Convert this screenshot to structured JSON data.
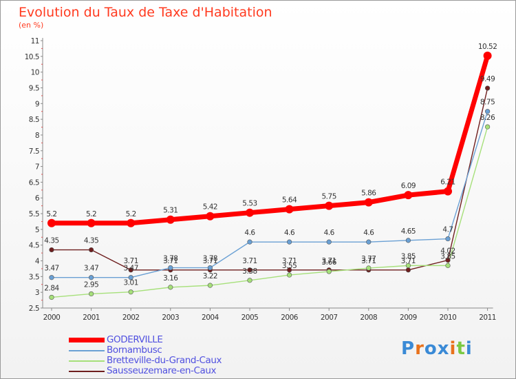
{
  "chart_data": {
    "type": "line",
    "title": "Evolution du Taux de Taxe d'Habitation",
    "subtitle": "(en %)",
    "x": [
      "2000",
      "2001",
      "2002",
      "2003",
      "2004",
      "2005",
      "2006",
      "2007",
      "2008",
      "2009",
      "2010",
      "2011"
    ],
    "ylim": [
      2.5,
      11
    ],
    "yticks": [
      "2.5",
      "3",
      "3.5",
      "4",
      "4.5",
      "5",
      "5.5",
      "6",
      "6.5",
      "7",
      "7.5",
      "8",
      "8.5",
      "9",
      "9.5",
      "10",
      "10.5",
      "11"
    ],
    "grid": false,
    "legend_position": "bottom-left",
    "series": [
      {
        "name": "GODERVILLE",
        "color": "#ff0000",
        "values": [
          5.2,
          5.2,
          5.2,
          5.31,
          5.42,
          5.53,
          5.64,
          5.75,
          5.86,
          6.09,
          6.21,
          10.52
        ],
        "labels": [
          "5.2",
          "5.2",
          "5.2",
          "5.31",
          "5.42",
          "5.53",
          "5.64",
          "5.75",
          "5.86",
          "6.09",
          "6.21",
          "10.52"
        ]
      },
      {
        "name": "Bornambusc",
        "color": "#6aa0d4",
        "values": [
          3.47,
          3.47,
          3.47,
          3.78,
          3.78,
          4.6,
          4.6,
          4.6,
          4.6,
          4.65,
          4.7,
          8.75
        ],
        "labels": [
          "3.47",
          "3.47",
          "3.47",
          "3.78",
          "3.78",
          "4.6",
          "4.6",
          "4.6",
          "4.6",
          "4.65",
          "4.7",
          "8.75"
        ]
      },
      {
        "name": "Bretteville-du-Grand-Caux",
        "color": "#a6e07a",
        "values": [
          2.84,
          2.95,
          3.01,
          3.16,
          3.22,
          3.38,
          3.55,
          3.66,
          3.77,
          3.85,
          3.85,
          8.26
        ],
        "labels": [
          "2.84",
          "2.95",
          "3.01",
          "3.16",
          "3.22",
          "3.38",
          "3.55",
          "3.66",
          "3.77",
          "3.85",
          "3.85",
          "8.26"
        ]
      },
      {
        "name": "Sausseuzemare-en-Caux",
        "color": "#6e1e1e",
        "values": [
          4.35,
          4.35,
          3.71,
          3.71,
          3.71,
          3.71,
          3.71,
          3.71,
          3.71,
          3.71,
          4.02,
          9.49
        ],
        "labels": [
          "4.35",
          "4.35",
          "3.71",
          "3.71",
          "3.71",
          "3.71",
          "3.71",
          "3.71",
          "3.71",
          "3.71",
          "4.02",
          "9.49"
        ]
      }
    ]
  },
  "logo": {
    "text": "Proxiti"
  }
}
